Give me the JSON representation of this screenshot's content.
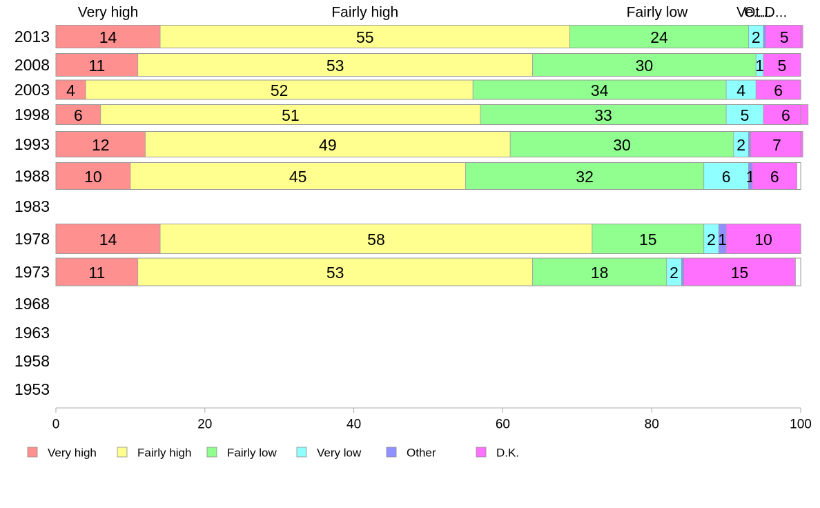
{
  "chart_data": {
    "type": "bar",
    "orientation": "horizontal",
    "stacked": true,
    "categories": [
      "2013",
      "2008",
      "2003",
      "1998",
      "1993",
      "1988",
      "1983",
      "1978",
      "1973",
      "1968",
      "1963",
      "1958",
      "1953"
    ],
    "series": [
      {
        "name": "Very high",
        "color": "#FF9090",
        "values": [
          14,
          11,
          4,
          6,
          12,
          10,
          null,
          14,
          11,
          null,
          null,
          null,
          null
        ]
      },
      {
        "name": "Fairly high",
        "color": "#FFFF90",
        "values": [
          55,
          53,
          52,
          51,
          49,
          45,
          null,
          58,
          53,
          null,
          null,
          null,
          null
        ]
      },
      {
        "name": "Fairly low",
        "color": "#90FF90",
        "values": [
          24,
          30,
          34,
          33,
          30,
          32,
          null,
          15,
          18,
          null,
          null,
          null,
          null
        ]
      },
      {
        "name": "Very low",
        "color": "#90FFFF",
        "values": [
          2,
          1,
          4,
          5,
          2,
          6,
          null,
          2,
          2,
          null,
          null,
          null,
          null
        ]
      },
      {
        "name": "Other",
        "color": "#9090FF",
        "values": [
          0.3,
          0,
          0,
          0,
          0.3,
          0.5,
          null,
          1,
          0.3,
          null,
          null,
          null,
          null
        ]
      },
      {
        "name": "D.K.",
        "color": "#FF70FF",
        "values": [
          5,
          5,
          6,
          6,
          7,
          6,
          null,
          10,
          15,
          null,
          null,
          null,
          null
        ]
      }
    ],
    "data_labels": [
      [
        "14",
        "55",
        "24",
        "2",
        "",
        "5"
      ],
      [
        "11",
        "53",
        "30",
        "1",
        "",
        "5"
      ],
      [
        "4",
        "52",
        "34",
        "4",
        "",
        "6"
      ],
      [
        "6",
        "51",
        "33",
        "5",
        "",
        "6"
      ],
      [
        "12",
        "49",
        "30",
        "2",
        "",
        "7"
      ],
      [
        "10",
        "45",
        "32",
        "6",
        "1",
        "6"
      ],
      [
        "",
        "",
        "",
        "",
        "",
        ""
      ],
      [
        "14",
        "58",
        "15",
        "2",
        "1",
        "10"
      ],
      [
        "11",
        "53",
        "18",
        "2",
        "",
        "15"
      ],
      [
        "",
        "",
        "",
        "",
        "",
        ""
      ],
      [
        "",
        "",
        "",
        "",
        "",
        ""
      ],
      [
        "",
        "",
        "",
        "",
        "",
        ""
      ],
      [
        "",
        "",
        "",
        "",
        "",
        ""
      ]
    ],
    "top_labels": [
      "Very high",
      "Fairly high",
      "Fairly low",
      "Ve...",
      "Ot...",
      "D..."
    ],
    "xlim": [
      0,
      100
    ],
    "xticks": [
      0,
      20,
      40,
      60,
      80,
      100
    ],
    "grid": false,
    "legend_position": "bottom"
  }
}
